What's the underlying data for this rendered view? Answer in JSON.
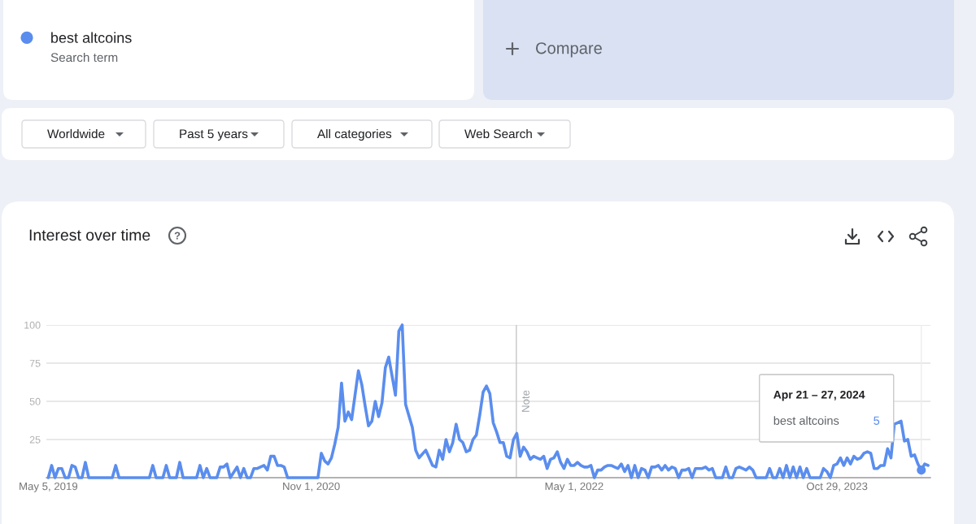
{
  "chart_data": {
    "type": "line",
    "title": "Interest over time",
    "x": [
      "2019-05-05",
      "2019-05-12",
      "2019-05-19",
      "2019-05-26",
      "2019-06-02",
      "2019-06-09",
      "2019-06-16",
      "2019-06-23",
      "2019-06-30",
      "2019-07-07",
      "2019-07-14",
      "2019-07-21",
      "2019-07-28",
      "2019-09-15",
      "2019-09-22",
      "2019-09-29",
      "2019-12-01",
      "2019-12-08",
      "2019-12-15",
      "2019-12-29",
      "2020-01-05",
      "2020-01-12",
      "2020-01-26",
      "2020-02-02",
      "2020-02-09",
      "2020-03-08",
      "2020-03-15",
      "2020-03-22",
      "2020-03-29",
      "2020-04-05",
      "2020-04-19",
      "2020-04-26",
      "2020-05-03",
      "2020-05-10",
      "2020-05-17",
      "2020-05-31",
      "2020-06-07",
      "2020-06-14",
      "2020-06-21",
      "2020-06-28",
      "2020-07-05",
      "2020-07-12",
      "2020-07-26",
      "2020-08-02",
      "2020-08-09",
      "2020-08-16",
      "2020-08-23",
      "2020-08-30",
      "2020-09-06",
      "2020-09-13",
      "2020-11-15",
      "2020-11-22",
      "2020-11-29",
      "2020-12-06",
      "2020-12-13",
      "2020-12-20",
      "2020-12-27",
      "2021-01-03",
      "2021-01-10",
      "2021-01-17",
      "2021-01-24",
      "2021-01-31",
      "2021-02-07",
      "2021-02-14",
      "2021-02-21",
      "2021-02-28",
      "2021-03-07",
      "2021-03-14",
      "2021-03-21",
      "2021-03-28",
      "2021-04-04",
      "2021-04-11",
      "2021-04-25",
      "2021-05-02",
      "2021-05-09",
      "2021-05-16",
      "2021-05-30",
      "2021-06-06",
      "2021-06-13",
      "2021-06-27",
      "2021-07-04",
      "2021-07-11",
      "2021-07-18",
      "2021-07-25",
      "2021-08-01",
      "2021-08-08",
      "2021-08-15",
      "2021-08-22",
      "2021-08-29",
      "2021-09-05",
      "2021-09-12",
      "2021-09-19",
      "2021-09-26",
      "2021-10-03",
      "2021-10-10",
      "2021-10-17",
      "2021-10-24",
      "2021-10-31",
      "2021-11-07",
      "2021-11-14",
      "2021-11-21",
      "2021-11-28",
      "2021-12-05",
      "2021-12-12",
      "2021-12-19",
      "2021-12-26",
      "2022-01-02",
      "2022-01-09",
      "2022-01-16",
      "2022-01-23",
      "2022-01-30",
      "2022-02-06",
      "2022-02-13",
      "2022-02-20",
      "2022-02-27",
      "2022-03-06",
      "2022-03-13",
      "2022-03-20",
      "2022-03-27",
      "2022-04-03",
      "2022-04-10",
      "2022-04-17",
      "2022-04-24",
      "2022-05-01",
      "2022-05-08",
      "2022-05-15",
      "2022-05-22",
      "2022-05-29",
      "2022-06-05",
      "2022-06-12",
      "2022-06-19",
      "2022-06-26",
      "2022-07-03",
      "2022-07-10",
      "2022-07-17",
      "2022-07-24",
      "2022-07-31",
      "2022-08-07",
      "2022-08-14",
      "2022-08-21",
      "2022-08-28",
      "2022-09-04",
      "2022-09-11",
      "2022-09-18",
      "2022-09-25",
      "2022-10-02",
      "2022-10-09",
      "2022-10-16",
      "2022-10-23",
      "2022-10-30",
      "2022-11-06",
      "2022-11-13",
      "2022-11-20",
      "2022-11-27",
      "2022-12-04",
      "2022-12-11",
      "2022-12-18",
      "2022-12-25",
      "2023-01-01",
      "2023-01-08",
      "2023-01-15",
      "2023-01-22",
      "2023-01-29",
      "2023-02-05",
      "2023-02-12",
      "2023-02-19",
      "2023-03-05",
      "2023-03-12",
      "2023-03-19",
      "2023-03-26",
      "2023-04-02",
      "2023-04-09",
      "2023-04-16",
      "2023-04-23",
      "2023-04-30",
      "2023-05-07",
      "2023-05-14",
      "2023-06-04",
      "2023-06-11",
      "2023-06-18",
      "2023-06-25",
      "2023-07-02",
      "2023-07-09",
      "2023-07-16",
      "2023-07-23",
      "2023-07-30",
      "2023-08-06",
      "2023-08-13",
      "2023-08-20",
      "2023-08-27",
      "2023-09-03",
      "2023-09-24",
      "2023-10-01",
      "2023-10-08",
      "2023-10-15",
      "2023-10-22",
      "2023-10-29",
      "2023-11-05",
      "2023-11-12",
      "2023-11-19",
      "2023-11-26",
      "2023-12-03",
      "2023-12-10",
      "2023-12-17",
      "2023-12-24",
      "2023-12-31",
      "2024-01-07",
      "2024-01-14",
      "2024-01-21",
      "2024-01-28",
      "2024-02-04",
      "2024-02-11",
      "2024-02-18",
      "2024-02-25",
      "2024-03-03",
      "2024-03-10",
      "2024-03-17",
      "2024-03-24",
      "2024-03-31",
      "2024-04-07",
      "2024-04-14",
      "2024-04-21",
      "2024-04-28",
      "2024-05-05"
    ],
    "series": [
      {
        "name": "best altcoins",
        "color": "#5a8dee",
        "values": [
          0,
          8,
          0,
          6,
          6,
          0,
          0,
          8,
          7,
          0,
          0,
          10,
          0,
          0,
          8,
          0,
          0,
          8,
          0,
          0,
          8,
          0,
          0,
          10,
          0,
          0,
          8,
          0,
          6,
          0,
          0,
          7,
          7,
          9,
          0,
          7,
          0,
          6,
          0,
          0,
          6,
          6,
          8,
          5,
          14,
          14,
          8,
          8,
          7,
          0,
          0,
          16,
          11,
          9,
          13,
          22,
          33,
          62,
          37,
          43,
          38,
          54,
          70,
          61,
          47,
          34,
          37,
          50,
          40,
          49,
          72,
          79,
          54,
          96,
          100,
          48,
          33,
          18,
          13,
          18,
          13,
          8,
          7,
          18,
          12,
          25,
          17,
          23,
          35,
          25,
          23,
          17,
          18,
          25,
          28,
          41,
          56,
          60,
          55,
          36,
          30,
          23,
          23,
          14,
          13,
          25,
          29,
          14,
          20,
          17,
          12,
          14,
          13,
          12,
          14,
          6,
          12,
          13,
          17,
          10,
          6,
          12,
          8,
          8,
          10,
          8,
          7,
          7,
          8,
          0,
          5,
          5,
          7,
          8,
          8,
          7,
          6,
          9,
          4,
          8,
          0,
          8,
          0,
          6,
          5,
          0,
          7,
          7,
          8,
          5,
          8,
          5,
          7,
          6,
          0,
          5,
          5,
          6,
          0,
          6,
          6,
          6,
          7,
          5,
          6,
          0,
          0,
          7,
          0,
          0,
          6,
          7,
          6,
          5,
          7,
          5,
          0,
          0,
          6,
          0,
          0,
          6,
          0,
          8,
          0,
          7,
          0,
          7,
          0,
          6,
          0,
          0,
          6,
          4,
          0,
          8,
          9,
          13,
          8,
          13,
          9,
          14,
          12,
          13,
          16,
          17,
          16,
          6,
          6,
          8,
          8,
          19,
          13,
          35,
          36,
          37,
          24,
          25,
          14,
          15,
          9,
          5,
          9,
          8
        ]
      }
    ],
    "xlim": [
      "2019-05-01",
      "2024-05-10"
    ],
    "xticks": [
      {
        "value": "2019-05-05",
        "label": "May 5, 2019"
      },
      {
        "value": "2020-11-01",
        "label": "Nov 1, 2020"
      },
      {
        "value": "2022-05-01",
        "label": "May 1, 2022"
      },
      {
        "value": "2023-10-29",
        "label": "Oct 29, 2023"
      }
    ],
    "ylim": [
      0,
      100
    ],
    "yticks": [
      {
        "value": 0,
        "label": null
      },
      25,
      50,
      75,
      100
    ],
    "grid": "y",
    "legend": "top left",
    "ref_lines": [
      {
        "axis": "x",
        "value": "2022-01-01",
        "label": "Note",
        "color": "#c6c6c6"
      },
      {
        "axis": "x",
        "value": "2024-04-21",
        "color": "#ececec"
      }
    ],
    "annotations": [
      "Search term",
      "Compare",
      "Worldwide",
      "Past 5 years",
      "All categories",
      "Web Search",
      "Apr 21 – 27, 2024",
      "5"
    ]
  }
}
